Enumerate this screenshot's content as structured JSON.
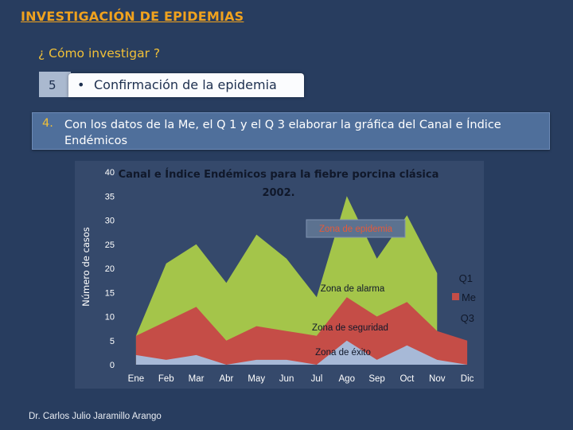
{
  "slide": {
    "title": "INVESTIGACIÓN DE EPIDEMIAS",
    "subtitle": "¿ Cómo investigar ?",
    "step_number": "5",
    "step_bullet": "•",
    "step_text": "Confirmación de la epidemia",
    "instruction_number": "4.",
    "instruction_text": "Con los  datos de la Me, el Q 1 y el Q 3 elaborar la gráfica del Canal e Índice Endémicos",
    "footer": "Dr. Carlos Julio Jaramillo Arango"
  },
  "colors": {
    "background": "#283d5f",
    "title": "#f0a21e",
    "subtitle": "#f1c038",
    "q1_area": "#a4c54a",
    "me_area": "#c54d47",
    "q3_area": "#a7b9d7",
    "chart_panel": "#35496b"
  },
  "chart_data": {
    "type": "area",
    "title": "Canal e Índice Endémicos para la fiebre porcina clásica 2002.",
    "ylabel": "Número de casos",
    "xlabel": "",
    "ylim": [
      0,
      40
    ],
    "yticks": [
      0,
      5,
      10,
      15,
      20,
      25,
      30,
      35,
      40
    ],
    "categories": [
      "Ene",
      "Feb",
      "Mar",
      "Abr",
      "May",
      "Jun",
      "Jul",
      "Ago",
      "Sep",
      "Oct",
      "Nov",
      "Dic"
    ],
    "series": [
      {
        "name": "Q1",
        "values": [
          6,
          21,
          25,
          17,
          27,
          22,
          14,
          35,
          22,
          31,
          19,
          null
        ]
      },
      {
        "name": "Me",
        "values": [
          6,
          9,
          12,
          5,
          8,
          7,
          6,
          14,
          10,
          13,
          7,
          5
        ]
      },
      {
        "name": "Q3",
        "values": [
          2,
          1,
          2,
          0,
          1,
          1,
          0,
          5,
          1,
          4,
          1,
          0
        ]
      }
    ],
    "legend": [
      "Q1",
      "Me",
      "Q3"
    ],
    "legend_position": "right",
    "annotations": [
      "Zona de epidemia",
      "Zona de alarma",
      "Zona de seguridad",
      "Zona de éxito"
    ]
  }
}
